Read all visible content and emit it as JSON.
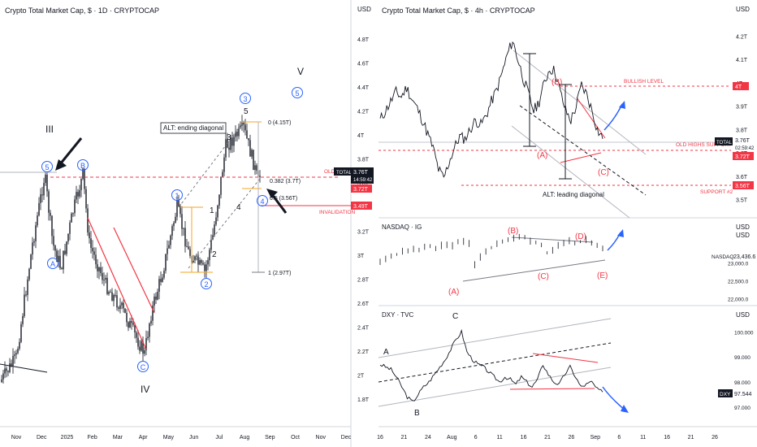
{
  "left_panel": {
    "title": "Crypto Total Market Cap, $ · 1D · CRYPTOCAP",
    "y_unit": "USD",
    "y_ticks": [
      "4.8T",
      "4.6T",
      "4.4T",
      "4.2T",
      "4T",
      "3.8T",
      "3.6T",
      "3.4T",
      "3.2T",
      "3T",
      "2.8T",
      "2.6T",
      "2.4T",
      "2.2T",
      "2T",
      "1.8T"
    ],
    "x_ticks": [
      "Nov",
      "Dec",
      "2025",
      "Feb",
      "Mar",
      "Apr",
      "May",
      "Jun",
      "Jul",
      "Aug",
      "Sep",
      "Oct",
      "Nov",
      "Dec"
    ],
    "badges": [
      {
        "label": "TOTAL",
        "value": "3.76T",
        "sub": "14:59:42",
        "color": "#131722"
      },
      {
        "label": "",
        "value": "3.72T",
        "sub": "",
        "color": "#f23645"
      },
      {
        "label": "",
        "value": "3.49T",
        "sub": "",
        "color": "#f23645"
      }
    ],
    "labels": {
      "wave_iii": "III",
      "wave_iv": "IV",
      "wave_v": "V",
      "c5_top": "5",
      "cB": "B",
      "cA": "A",
      "cC": "C",
      "c1": "1",
      "c2": "2",
      "c3": "3",
      "c4": "4",
      "c5_right": "5",
      "w1": "1",
      "w2": "2",
      "w3": "3",
      "w4": "4",
      "w5": "5",
      "alt": "ALT: ending diagonal",
      "fib_0": "0 (4.15T)",
      "fib_0382": "0.382 (3.7T)",
      "fib_05": "0.5 (3.56T)",
      "fib_1": "1 (2.97T)",
      "invalidation": "INVALIDATION",
      "old_highs": "OLD"
    }
  },
  "chart_data": [
    {
      "type": "line",
      "title": "Crypto Total Market Cap, $ · 4h · CRYPTOCAP",
      "y_unit": "USD",
      "y_ticks": [
        "4.2T",
        "4.1T",
        "4T",
        "3.9T",
        "3.8T",
        "3.7T",
        "3.6T",
        "3.5T"
      ],
      "x_ticks": [
        "16",
        "21",
        "24",
        "Aug",
        "6",
        "11",
        "16",
        "21",
        "26",
        "Sep",
        "6",
        "11",
        "16",
        "21",
        "26"
      ],
      "ylim": [
        3.45,
        4.25
      ],
      "badges": [
        {
          "label": "TOTAL",
          "value": "3.76T",
          "sub": "02:59:42",
          "color": "#131722"
        },
        {
          "label": "",
          "value": "3.72T",
          "sub": "",
          "color": "#f23645"
        },
        {
          "label": "",
          "value": "4T",
          "sub": "",
          "color": "#f23645"
        },
        {
          "label": "",
          "value": "3.56T",
          "sub": "",
          "color": "#f23645"
        }
      ],
      "levels": {
        "bullish": "BULLISH LEVEL",
        "old_highs": "OLD HIGHS SUPPORT",
        "support2": "SUPPORT #2"
      },
      "wave_labels": {
        "A": "(A)",
        "B": "(B)",
        "C": "(C)"
      },
      "annotation": "ALT: leading diagonal",
      "series": [
        {
          "values": [
            3.84,
            3.88,
            3.92,
            3.96,
            3.94,
            3.98,
            3.93,
            3.89,
            3.84,
            3.78,
            3.72,
            3.63,
            3.59,
            3.66,
            3.72,
            3.77,
            3.76,
            3.8,
            3.84,
            3.82,
            3.86,
            3.92,
            3.97,
            4.04,
            4.12,
            4.18,
            4.1,
            4.02,
            3.95,
            3.88,
            3.92,
            4.0,
            4.06,
            4.05,
            3.96,
            3.88,
            3.84,
            3.9,
            3.99,
            3.95,
            3.88,
            3.8,
            3.76
          ]
        }
      ]
    },
    {
      "type": "line",
      "title": "NASDAQ · IG",
      "y_unit": "USD",
      "y_ticks": [
        "23,000.0",
        "22,500.0",
        "22,000.0"
      ],
      "badge": {
        "label": "NASDAQ",
        "value": "23,436.6"
      },
      "wave_labels": {
        "A": "(A)",
        "B": "(B)",
        "C": "(C)",
        "D": "(D)",
        "E": "(E)"
      },
      "series": [
        {
          "values": [
            23050,
            23120,
            23180,
            23240,
            23300,
            23360,
            23400,
            23380,
            23430,
            23470,
            23420,
            23480,
            23520,
            23490,
            23560,
            23610,
            23540,
            22950,
            23150,
            23300,
            23420,
            23520,
            23600,
            23650,
            23700,
            23750,
            23690,
            23620,
            23560,
            23500,
            23280,
            23350,
            23480,
            23560,
            23620,
            23540,
            23590,
            23650,
            23560,
            23500,
            23440
          ]
        }
      ]
    },
    {
      "type": "line",
      "title": "DXY · TVC",
      "y_unit": "USD",
      "y_ticks": [
        "100.000",
        "99.000",
        "98.000",
        "97.000"
      ],
      "badge": {
        "label": "DXY",
        "value": "97.544"
      },
      "wave_labels": {
        "A": "A",
        "B": "B",
        "C": "C"
      },
      "series": [
        {
          "values": [
            98.7,
            98.6,
            98.5,
            98.2,
            97.8,
            97.4,
            97.2,
            97.5,
            97.8,
            98.0,
            98.3,
            98.6,
            98.9,
            99.3,
            99.7,
            100.0,
            99.2,
            98.9,
            98.7,
            98.6,
            98.4,
            98.2,
            98.0,
            98.2,
            98.1,
            97.9,
            98.2,
            98.0,
            97.8,
            98.1,
            98.7,
            98.3,
            98.0,
            97.9,
            98.3,
            98.6,
            98.2,
            97.8,
            97.9,
            98.0,
            97.7,
            97.6
          ]
        }
      ]
    }
  ]
}
